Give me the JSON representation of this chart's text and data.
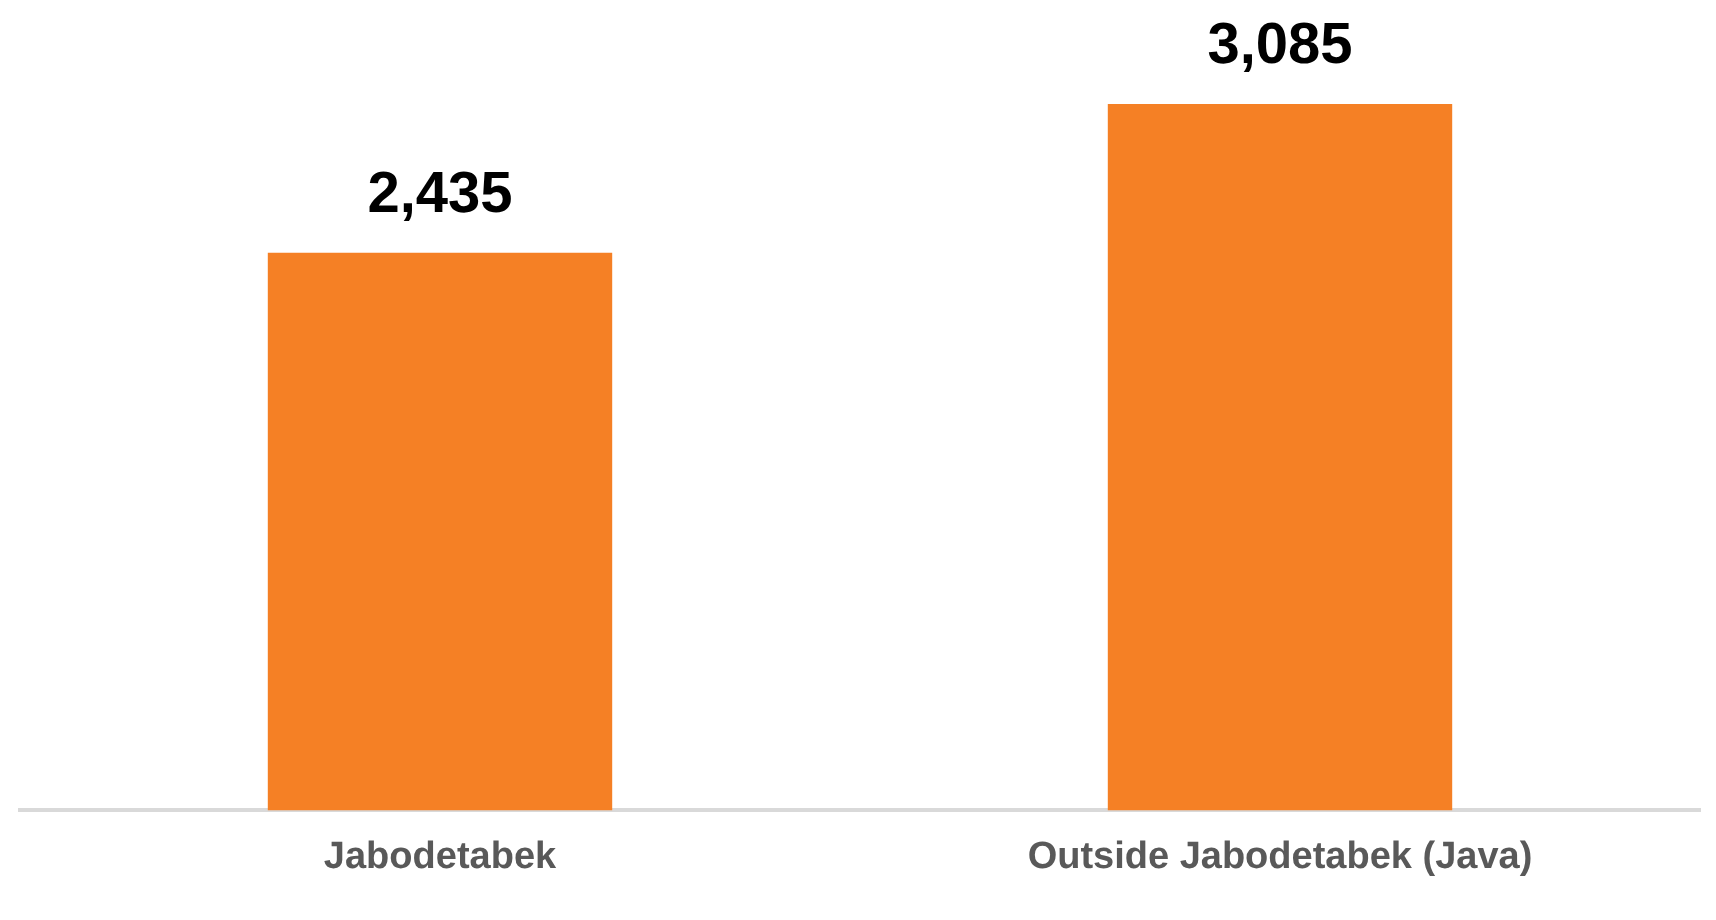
{
  "chart_data": {
    "type": "bar",
    "categories": [
      "Jabodetabek",
      "Outside Jabodetabek (Java)"
    ],
    "values": [
      2435,
      3085
    ],
    "value_labels": [
      "2,435",
      "3,085"
    ],
    "color": "#f58025",
    "grid": false,
    "legend": false
  }
}
